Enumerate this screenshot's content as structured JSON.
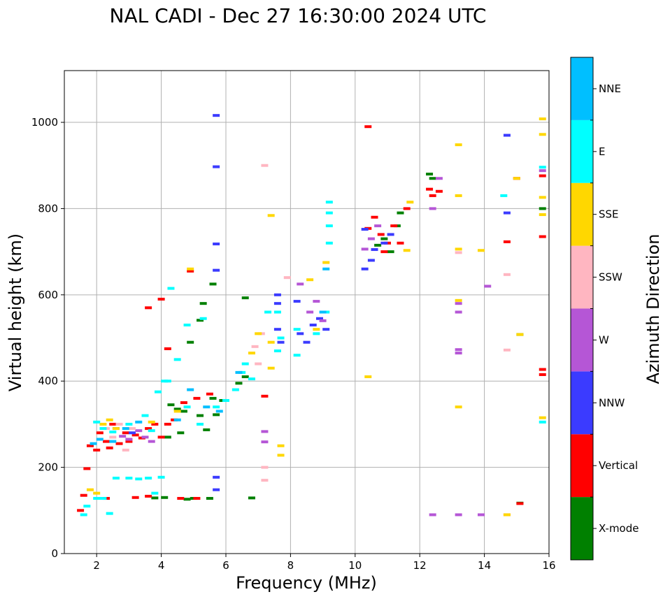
{
  "chart_data": {
    "type": "scatter",
    "title": "NAL CADI - Dec 27 16:30:00 2024 UTC",
    "xlabel": "Frequency (MHz)",
    "ylabel": "Virtual height (km)",
    "xlim": [
      1,
      16
    ],
    "ylim": [
      0,
      1120
    ],
    "xticks": [
      2,
      4,
      6,
      8,
      10,
      12,
      14,
      16
    ],
    "yticks": [
      0,
      200,
      400,
      600,
      800,
      1000
    ],
    "grid": true,
    "colorbar": {
      "label": "Azimuth Direction",
      "categories": [
        {
          "name": "X-mode",
          "color": "#008000"
        },
        {
          "name": "Vertical",
          "color": "#ff0000"
        },
        {
          "name": "NNW",
          "color": "#3b3bff"
        },
        {
          "name": "W",
          "color": "#b556d6"
        },
        {
          "name": "SSW",
          "color": "#ffb6c1"
        },
        {
          "name": "SSE",
          "color": "#ffd700"
        },
        {
          "name": "E",
          "color": "#00ffff"
        },
        {
          "name": "NNE",
          "color": "#00bfff"
        }
      ]
    },
    "series": [
      {
        "name": "X-mode",
        "points": [
          [
            4.2,
            270
          ],
          [
            4.5,
            335
          ],
          [
            4.7,
            330
          ],
          [
            5.2,
            320
          ],
          [
            5.6,
            360
          ],
          [
            5.9,
            355
          ],
          [
            6.4,
            395
          ],
          [
            6.6,
            410
          ],
          [
            6.8,
            129
          ],
          [
            4.8,
            126
          ],
          [
            5.0,
            128
          ],
          [
            5.5,
            128
          ],
          [
            5.7,
            322
          ],
          [
            3.8,
            129
          ],
          [
            4.1,
            130
          ],
          [
            10.7,
            715
          ],
          [
            10.9,
            730
          ],
          [
            11.1,
            700
          ],
          [
            11.3,
            760
          ],
          [
            11.4,
            790
          ],
          [
            12.3,
            880
          ],
          [
            12.4,
            870
          ],
          [
            15.1,
            117
          ],
          [
            15.1,
            508
          ],
          [
            15.8,
            800
          ],
          [
            6.6,
            593
          ],
          [
            5.3,
            580
          ],
          [
            5.6,
            625
          ],
          [
            4.9,
            490
          ],
          [
            5.2,
            541
          ],
          [
            4.6,
            280
          ],
          [
            5.4,
            287
          ],
          [
            4.3,
            345
          ]
        ]
      },
      {
        "name": "Vertical",
        "points": [
          [
            1.5,
            100
          ],
          [
            1.6,
            135
          ],
          [
            1.8,
            250
          ],
          [
            2.0,
            240
          ],
          [
            2.1,
            280
          ],
          [
            2.3,
            260
          ],
          [
            2.4,
            245
          ],
          [
            2.5,
            300
          ],
          [
            2.7,
            255
          ],
          [
            2.9,
            280
          ],
          [
            3.0,
            260
          ],
          [
            3.2,
            275
          ],
          [
            3.4,
            268
          ],
          [
            3.6,
            290
          ],
          [
            3.8,
            300
          ],
          [
            4.0,
            270
          ],
          [
            4.2,
            300
          ],
          [
            4.4,
            310
          ],
          [
            4.7,
            350
          ],
          [
            5.1,
            360
          ],
          [
            5.5,
            370
          ],
          [
            3.6,
            570
          ],
          [
            4.2,
            475
          ],
          [
            4.0,
            590
          ],
          [
            7.2,
            365
          ],
          [
            2.3,
            128
          ],
          [
            3.2,
            130
          ],
          [
            3.6,
            133
          ],
          [
            4.6,
            128
          ],
          [
            5.1,
            128
          ],
          [
            10.4,
            990
          ],
          [
            10.4,
            754
          ],
          [
            10.6,
            780
          ],
          [
            10.8,
            740
          ],
          [
            10.9,
            700
          ],
          [
            11.0,
            720
          ],
          [
            11.2,
            760
          ],
          [
            11.4,
            720
          ],
          [
            11.6,
            800
          ],
          [
            12.3,
            845
          ],
          [
            12.4,
            830
          ],
          [
            12.6,
            840
          ],
          [
            14.7,
            723
          ],
          [
            14.7,
            90
          ],
          [
            15.0,
            870
          ],
          [
            15.1,
            116
          ],
          [
            15.8,
            876
          ],
          [
            15.8,
            735
          ],
          [
            15.8,
            427
          ],
          [
            15.8,
            415
          ],
          [
            4.9,
            655
          ],
          [
            1.7,
            197
          ]
        ]
      },
      {
        "name": "NNW",
        "points": [
          [
            5.7,
            1016
          ],
          [
            5.7,
            897
          ],
          [
            5.7,
            718
          ],
          [
            5.7,
            657
          ],
          [
            7.6,
            580
          ],
          [
            7.6,
            600
          ],
          [
            7.6,
            520
          ],
          [
            7.7,
            490
          ],
          [
            8.2,
            585
          ],
          [
            8.3,
            510
          ],
          [
            8.5,
            490
          ],
          [
            8.7,
            530
          ],
          [
            8.9,
            545
          ],
          [
            9.1,
            520
          ],
          [
            10.3,
            752
          ],
          [
            10.3,
            660
          ],
          [
            10.5,
            680
          ],
          [
            10.6,
            705
          ],
          [
            10.9,
            720
          ],
          [
            11.1,
            740
          ],
          [
            14.7,
            970
          ],
          [
            14.7,
            790
          ],
          [
            3.1,
            280
          ],
          [
            2.6,
            290
          ],
          [
            5.7,
            177
          ],
          [
            5.7,
            148
          ]
        ]
      },
      {
        "name": "W",
        "points": [
          [
            2.8,
            272
          ],
          [
            3.0,
            265
          ],
          [
            3.3,
            285
          ],
          [
            3.5,
            270
          ],
          [
            3.7,
            260
          ],
          [
            8.3,
            625
          ],
          [
            8.6,
            560
          ],
          [
            8.8,
            585
          ],
          [
            9.0,
            540
          ],
          [
            10.3,
            706
          ],
          [
            10.5,
            730
          ],
          [
            10.7,
            760
          ],
          [
            12.6,
            870
          ],
          [
            12.4,
            800
          ],
          [
            13.2,
            560
          ],
          [
            13.2,
            580
          ],
          [
            13.2,
            473
          ],
          [
            13.2,
            465
          ],
          [
            14.1,
            620
          ],
          [
            15.8,
            888
          ],
          [
            12.4,
            90
          ],
          [
            13.2,
            90
          ],
          [
            13.9,
            90
          ],
          [
            7.2,
            283
          ],
          [
            7.2,
            259
          ]
        ]
      },
      {
        "name": "SSW",
        "points": [
          [
            2.3,
            290
          ],
          [
            2.5,
            270
          ],
          [
            2.7,
            300
          ],
          [
            2.9,
            240
          ],
          [
            3.1,
            290
          ],
          [
            6.9,
            480
          ],
          [
            7.0,
            440
          ],
          [
            7.1,
            510
          ],
          [
            7.2,
            200
          ],
          [
            7.2,
            170
          ],
          [
            14.7,
            647
          ],
          [
            14.7,
            472
          ],
          [
            13.2,
            698
          ],
          [
            7.2,
            900
          ],
          [
            7.9,
            640
          ]
        ]
      },
      {
        "name": "SSE",
        "points": [
          [
            1.8,
            148
          ],
          [
            2.0,
            140
          ],
          [
            2.2,
            300
          ],
          [
            2.4,
            310
          ],
          [
            2.6,
            290
          ],
          [
            3.7,
            305
          ],
          [
            4.5,
            330
          ],
          [
            4.9,
            660
          ],
          [
            6.8,
            465
          ],
          [
            7.0,
            510
          ],
          [
            7.4,
            784
          ],
          [
            7.4,
            430
          ],
          [
            7.4,
            490
          ],
          [
            7.7,
            250
          ],
          [
            7.7,
            228
          ],
          [
            8.6,
            635
          ],
          [
            8.8,
            520
          ],
          [
            9.1,
            675
          ],
          [
            10.4,
            410
          ],
          [
            11.6,
            703
          ],
          [
            11.7,
            815
          ],
          [
            13.2,
            948
          ],
          [
            13.2,
            830
          ],
          [
            13.2,
            706
          ],
          [
            13.2,
            587
          ],
          [
            13.2,
            340
          ],
          [
            13.9,
            703
          ],
          [
            14.7,
            90
          ],
          [
            15.0,
            870
          ],
          [
            15.1,
            508
          ],
          [
            15.8,
            1008
          ],
          [
            15.8,
            972
          ],
          [
            15.8,
            826
          ],
          [
            15.8,
            786
          ],
          [
            15.8,
            315
          ]
        ]
      },
      {
        "name": "E",
        "points": [
          [
            1.6,
            90
          ],
          [
            1.7,
            110
          ],
          [
            2.0,
            128
          ],
          [
            2.2,
            128
          ],
          [
            2.6,
            175
          ],
          [
            3.0,
            175
          ],
          [
            3.3,
            173
          ],
          [
            3.6,
            175
          ],
          [
            4.0,
            177
          ],
          [
            2.4,
            93
          ],
          [
            2.0,
            305
          ],
          [
            2.2,
            290
          ],
          [
            2.5,
            282
          ],
          [
            3.0,
            300
          ],
          [
            3.5,
            320
          ],
          [
            3.9,
            375
          ],
          [
            4.2,
            400
          ],
          [
            4.3,
            615
          ],
          [
            4.8,
            340
          ],
          [
            5.2,
            300
          ],
          [
            5.7,
            340
          ],
          [
            6.0,
            355
          ],
          [
            6.3,
            380
          ],
          [
            6.5,
            420
          ],
          [
            6.6,
            440
          ],
          [
            6.8,
            405
          ],
          [
            7.3,
            560
          ],
          [
            7.6,
            560
          ],
          [
            7.6,
            470
          ],
          [
            7.7,
            500
          ],
          [
            8.2,
            460
          ],
          [
            8.2,
            520
          ],
          [
            8.8,
            510
          ],
          [
            9.1,
            560
          ],
          [
            9.2,
            720
          ],
          [
            9.2,
            760
          ],
          [
            9.2,
            790
          ],
          [
            9.2,
            815
          ],
          [
            14.6,
            830
          ],
          [
            15.8,
            896
          ],
          [
            15.8,
            305
          ],
          [
            4.8,
            530
          ],
          [
            5.3,
            545
          ],
          [
            4.5,
            450
          ],
          [
            4.1,
            400
          ],
          [
            3.7,
            285
          ],
          [
            3.8,
            140
          ]
        ]
      },
      {
        "name": "NNE",
        "points": [
          [
            1.9,
            255
          ],
          [
            2.1,
            265
          ],
          [
            2.5,
            260
          ],
          [
            2.9,
            290
          ],
          [
            3.3,
            305
          ],
          [
            4.5,
            310
          ],
          [
            5.4,
            340
          ],
          [
            5.8,
            330
          ],
          [
            4.9,
            380
          ],
          [
            6.4,
            420
          ],
          [
            9.0,
            560
          ],
          [
            9.1,
            660
          ]
        ]
      }
    ]
  }
}
